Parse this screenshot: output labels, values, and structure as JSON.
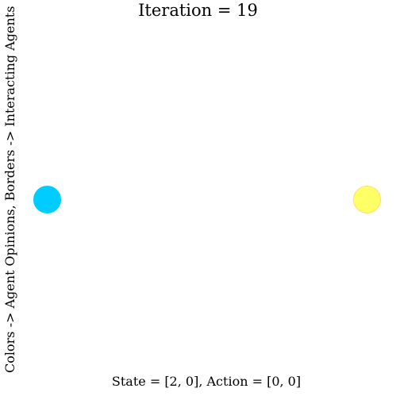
{
  "title": "Iteration = 19",
  "xlabel": "State = [2, 0], Action = [0, 0]",
  "ylabel": "Colors -> Agent Opinions, Borders -> Interacting Agents",
  "agents": [
    {
      "color": "#00ccff",
      "border": "#00ccff"
    },
    {
      "color": "#ffff66",
      "border": "#ffe066"
    }
  ]
}
